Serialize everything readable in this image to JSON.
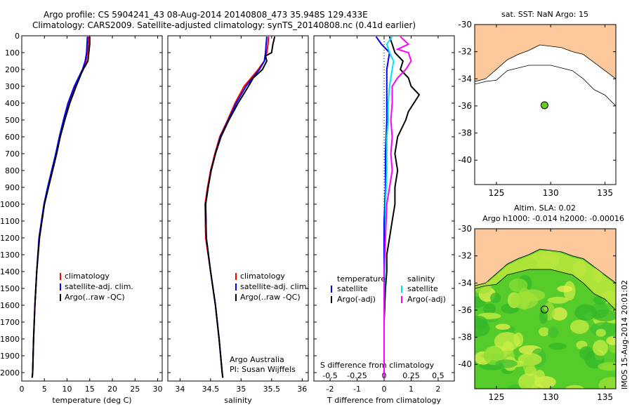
{
  "title_line1": "Argo profile: CS 5904241_43 08-Aug-2014 20140808_473 35.948S 129.433E",
  "title_line2": "Climatology: CARS2009. Satellite-adjusted climatology: synTS_20140808.nc (0.41d earlier)",
  "side_stamp": "IMOS 15-Aug-2014 20:01:02",
  "chart_data": [
    {
      "type": "line",
      "xlabel": "temperature (deg C)",
      "ylabel": "",
      "xlim": [
        0,
        31
      ],
      "ylim": [
        2050,
        0
      ],
      "xticks": [
        0,
        5,
        10,
        15,
        20,
        25,
        30
      ],
      "yticks": [
        0,
        100,
        200,
        300,
        400,
        500,
        600,
        700,
        800,
        900,
        1000,
        1100,
        1200,
        1300,
        1400,
        1500,
        1600,
        1700,
        1800,
        1900,
        2000
      ],
      "legend": [
        "climatology",
        "satellite-adj. clim.",
        "Argo(..raw -QC)"
      ],
      "series": [
        {
          "name": "climatology",
          "color": "#ff0000",
          "y": [
            5,
            50,
            100,
            150,
            200,
            300,
            400,
            500,
            600,
            700,
            800,
            900,
            1000,
            1200,
            1400,
            1600,
            1800,
            2000,
            2030
          ],
          "x": [
            14.8,
            14.7,
            14.5,
            14.2,
            13.6,
            11.7,
            10.3,
            9.3,
            8.4,
            7.6,
            6.7,
            5.8,
            5.0,
            3.9,
            3.3,
            2.9,
            2.6,
            2.4,
            2.3
          ]
        },
        {
          "name": "satellite-adj. clim.",
          "color": "#0000ff",
          "y": [
            5,
            50,
            100,
            150,
            200,
            300,
            400,
            500,
            600,
            700,
            800,
            900,
            1000,
            1200,
            1400,
            1600,
            1800,
            2000,
            2030
          ],
          "x": [
            14.5,
            14.4,
            14.3,
            14.0,
            13.4,
            11.6,
            10.2,
            9.2,
            8.3,
            7.5,
            6.6,
            5.7,
            4.9,
            3.8,
            3.3,
            2.9,
            2.6,
            2.4,
            2.3
          ]
        },
        {
          "name": "Argo(..raw -QC)",
          "color": "#000000",
          "y": [
            5,
            50,
            100,
            150,
            180,
            200,
            300,
            400,
            500,
            600,
            700,
            800,
            900,
            1000,
            1200,
            1400,
            1600,
            1800,
            2000,
            2030
          ],
          "x": [
            15.0,
            15.0,
            14.8,
            14.6,
            14.0,
            13.5,
            12.0,
            10.6,
            9.5,
            8.5,
            7.7,
            6.8,
            5.9,
            5.0,
            3.9,
            3.3,
            2.9,
            2.6,
            2.4,
            2.3
          ]
        }
      ]
    },
    {
      "type": "line",
      "xlabel": "salinity",
      "xlim": [
        33.8,
        36.1
      ],
      "ylim": [
        2050,
        0
      ],
      "xticks": [
        34,
        34.5,
        35,
        35.5,
        36
      ],
      "legend": [
        "climatology",
        "satellite-adj. clim.",
        "Argo(..raw -QC)"
      ],
      "annotation": [
        "Argo Australia",
        "PI: Susan Wijffels"
      ],
      "series": [
        {
          "name": "climatology",
          "color": "#ff0000",
          "y": [
            5,
            50,
            100,
            150,
            200,
            300,
            400,
            500,
            600,
            700,
            800,
            900,
            1000,
            1200,
            1400,
            1600,
            1800,
            2000,
            2030
          ],
          "x": [
            35.45,
            35.44,
            35.42,
            35.38,
            35.28,
            35.05,
            34.9,
            34.78,
            34.65,
            34.57,
            34.5,
            34.45,
            34.41,
            34.42,
            34.5,
            34.58,
            34.64,
            34.69,
            34.7
          ]
        },
        {
          "name": "satellite-adj. clim.",
          "color": "#0000ff",
          "y": [
            5,
            50,
            100,
            150,
            200,
            300,
            400,
            500,
            600,
            700,
            800,
            900,
            1000,
            1200,
            1400,
            1600,
            1800,
            2000,
            2030
          ],
          "x": [
            35.42,
            35.41,
            35.4,
            35.38,
            35.3,
            35.08,
            34.92,
            34.79,
            34.66,
            34.58,
            34.51,
            34.46,
            34.42,
            34.43,
            34.5,
            34.58,
            34.64,
            34.69,
            34.7
          ]
        },
        {
          "name": "Argo(..raw -QC)",
          "color": "#000000",
          "y": [
            5,
            50,
            100,
            120,
            150,
            200,
            250,
            300,
            400,
            500,
            600,
            700,
            800,
            900,
            1000,
            1200,
            1400,
            1600,
            1800,
            2000,
            2030
          ],
          "x": [
            35.55,
            35.52,
            35.5,
            35.4,
            35.42,
            35.35,
            35.2,
            35.12,
            34.95,
            34.8,
            34.67,
            34.58,
            34.51,
            34.46,
            34.42,
            34.43,
            34.5,
            34.58,
            34.64,
            34.69,
            34.7
          ]
        }
      ]
    },
    {
      "type": "line",
      "xlabel": "T difference from climatology",
      "xlabel_top": "S difference from climatology",
      "xlim": [
        -2.6,
        2.6
      ],
      "ylim": [
        2050,
        0
      ],
      "xticks": [
        -2,
        -1,
        0,
        1,
        2
      ],
      "xticks_top": [
        -0.5,
        -0.25,
        0,
        0.25,
        0.5
      ],
      "legend_groups": [
        {
          "heading": "temperature",
          "entries": [
            "satellite",
            "Argo(-adj)"
          ]
        },
        {
          "heading": "salinity",
          "entries": [
            "satellite",
            "Argo(-adj)"
          ]
        }
      ],
      "series": [
        {
          "name": "satellite",
          "group": "temperature",
          "color": "#0000ff",
          "y": [
            5,
            50,
            100,
            200,
            300,
            400,
            500,
            700,
            900,
            1100,
            1300,
            1500,
            1800,
            2030
          ],
          "x": [
            -0.3,
            -0.1,
            0.2,
            0.1,
            0.1,
            0.1,
            0.1,
            0.05,
            0.05,
            0.0,
            0.0,
            0.0,
            0.0,
            0.0
          ]
        },
        {
          "name": "Argo(-adj)",
          "group": "temperature",
          "color": "#000000",
          "y": [
            5,
            50,
            100,
            150,
            200,
            250,
            300,
            350,
            400,
            450,
            500,
            600,
            700,
            800,
            900,
            1000,
            1100,
            1200,
            1300,
            1400,
            1500,
            1700,
            1900,
            2030
          ],
          "x": [
            0.2,
            0.3,
            0.4,
            0.7,
            0.6,
            0.9,
            1.0,
            1.3,
            1.1,
            0.9,
            0.8,
            0.5,
            0.4,
            0.5,
            0.4,
            0.4,
            0.3,
            0.2,
            0.1,
            0.1,
            0.05,
            0.0,
            0.0,
            0.0
          ]
        },
        {
          "name": "satellite",
          "group": "salinity",
          "color": "#00e0ff",
          "y": [
            5,
            50,
            100,
            150,
            200,
            300,
            400,
            500,
            600,
            800,
            1000,
            1200,
            1400,
            1600,
            1800,
            2030
          ],
          "x": [
            0.3,
            0.1,
            0.2,
            0.35,
            0.3,
            0.2,
            0.15,
            0.15,
            0.1,
            0.1,
            0.05,
            0.05,
            0.02,
            0.0,
            0.0,
            0.0
          ]
        },
        {
          "name": "Argo(-adj)",
          "group": "salinity",
          "color": "#ff00ff",
          "y": [
            5,
            50,
            80,
            100,
            150,
            200,
            250,
            300,
            400,
            500,
            600,
            700,
            800,
            900,
            1000,
            1200,
            1400,
            1600,
            1800,
            2030
          ],
          "x": [
            0.6,
            0.9,
            0.5,
            0.9,
            1.0,
            0.8,
            0.5,
            0.3,
            0.3,
            0.25,
            0.3,
            0.25,
            0.3,
            0.2,
            0.1,
            0.05,
            0.0,
            0.0,
            0.0,
            0.0
          ]
        }
      ]
    },
    {
      "type": "map",
      "title": "sat. SST: NaN Argo: 15",
      "xlim": [
        123,
        136
      ],
      "ylim": [
        -41.8,
        -30
      ],
      "xticks": [
        125,
        130,
        135
      ],
      "yticks": [
        -30,
        -32,
        -34,
        -36,
        -38,
        -40
      ],
      "land_color": "#fdc99c",
      "marker": {
        "lon": 129.43,
        "lat": -35.95,
        "color": "#66cc22"
      }
    },
    {
      "type": "heatmap",
      "title_line1": "Altim. SLA: 0.02",
      "title_line2": "Argo h1000: -0.014 h2000: -0.00016",
      "xlim": [
        123,
        136
      ],
      "ylim": [
        -41.8,
        -30
      ],
      "xticks": [
        125,
        130,
        135
      ],
      "yticks": [
        -30,
        -32,
        -34,
        -36,
        -38,
        -40
      ],
      "land_color": "#fdc99c",
      "marker": {
        "lon": 129.43,
        "lat": -35.95,
        "color": "#66cc22"
      }
    }
  ]
}
